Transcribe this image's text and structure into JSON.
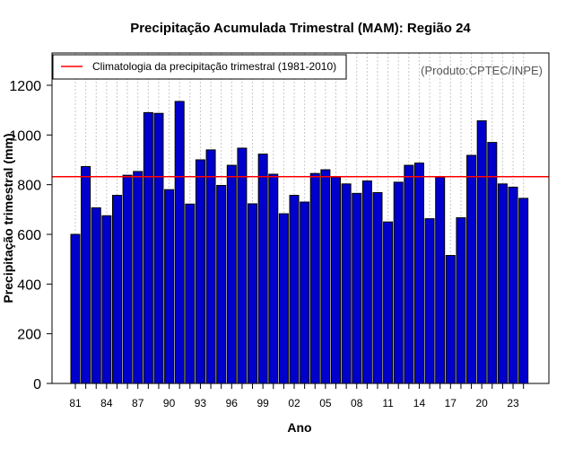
{
  "chart_data": {
    "type": "bar",
    "title": "Precipitação Acumulada Trimestral (MAM): Região 24",
    "xlabel": "Ano",
    "ylabel": "Precipitação trimestral (mm)",
    "credit": "(Produto:CPTEC/INPE)",
    "legend": {
      "label": "Climatologia da precipitação trimestral (1981-2010)",
      "color": "#ff0000",
      "position": "top-left"
    },
    "bar_color": "#0000cc",
    "grid": true,
    "ylim": [
      0,
      1330
    ],
    "yticks": [
      0,
      200,
      400,
      600,
      800,
      1000,
      1200
    ],
    "ytick_labels": [
      "0",
      "200",
      "400",
      "600",
      "800",
      "1000",
      "1200"
    ],
    "climatology": 832,
    "categories": [
      "1981",
      "1982",
      "1983",
      "1984",
      "1985",
      "1986",
      "1987",
      "1988",
      "1989",
      "1990",
      "1991",
      "1992",
      "1993",
      "1994",
      "1995",
      "1996",
      "1997",
      "1998",
      "1999",
      "2000",
      "2001",
      "2002",
      "2003",
      "2004",
      "2005",
      "2006",
      "2007",
      "2008",
      "2009",
      "2010",
      "2011",
      "2012",
      "2013",
      "2014",
      "2015",
      "2016",
      "2017",
      "2018",
      "2019",
      "2020",
      "2021",
      "2022",
      "2023",
      "2024"
    ],
    "xtick_labels": [
      "81",
      "84",
      "87",
      "90",
      "93",
      "96",
      "99",
      "02",
      "05",
      "08",
      "11",
      "14",
      "17",
      "20",
      "23"
    ],
    "values": [
      600,
      873,
      707,
      675,
      757,
      838,
      853,
      1090,
      1087,
      780,
      1135,
      722,
      900,
      940,
      797,
      878,
      947,
      723,
      923,
      842,
      683,
      757,
      730,
      845,
      860,
      830,
      803,
      765,
      815,
      768,
      650,
      810,
      878,
      887,
      663,
      830,
      515,
      667,
      918,
      1057,
      970,
      803,
      790,
      745
    ]
  }
}
